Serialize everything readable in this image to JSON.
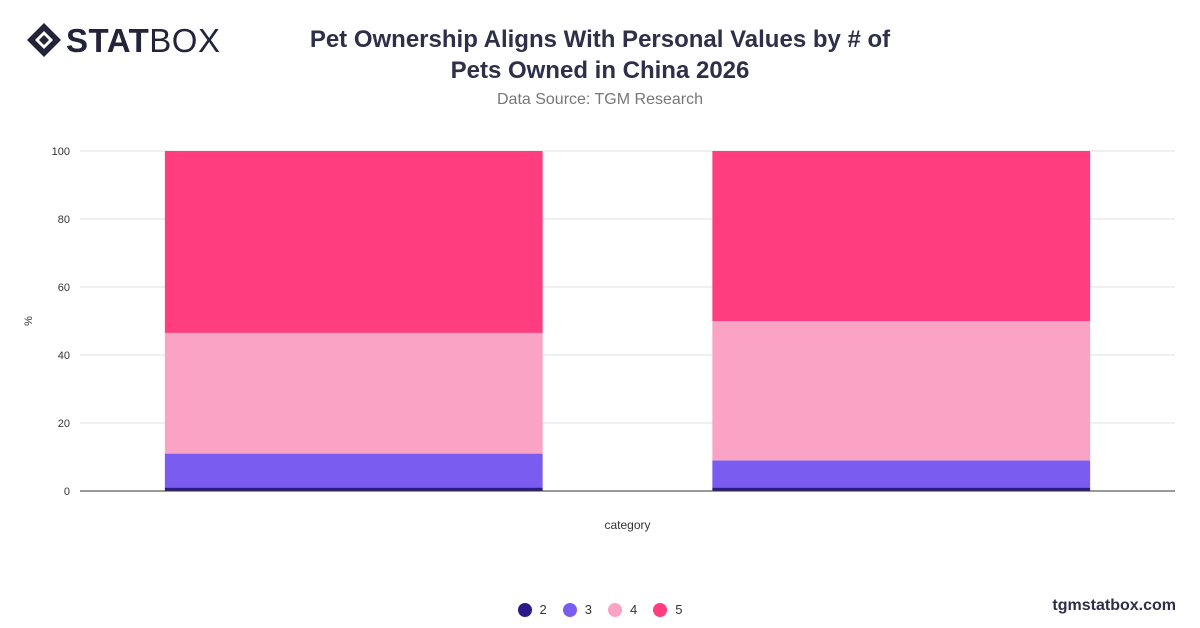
{
  "brand": {
    "stat": "STAT",
    "box": "BOX"
  },
  "header": {
    "title_line1": "Pet Ownership Aligns With Personal Values by # of",
    "title_line2": "Pets Owned in China 2026",
    "subtitle": "Data Source: TGM Research"
  },
  "watermark": "tgmstatbox.com",
  "colors": {
    "brand_dark": "#23233a",
    "grid": "#e2e2e2",
    "axis": "#333333"
  },
  "chart_data": {
    "type": "bar",
    "stacked": true,
    "categories": [
      "",
      ""
    ],
    "xlabel": "category",
    "ylabel": "%",
    "ylim": [
      0,
      100
    ],
    "yticks": [
      0,
      20,
      40,
      60,
      80,
      100
    ],
    "grid": true,
    "legend_position": "bottom",
    "series": [
      {
        "name": "2",
        "color": "#2e1a87",
        "values": [
          1,
          1
        ]
      },
      {
        "name": "3",
        "color": "#7b5cf0",
        "values": [
          10,
          8
        ]
      },
      {
        "name": "4",
        "color": "#fba3c4",
        "values": [
          35.5,
          41
        ]
      },
      {
        "name": "5",
        "color": "#ff3d7f",
        "values": [
          53.5,
          50
        ]
      }
    ]
  }
}
